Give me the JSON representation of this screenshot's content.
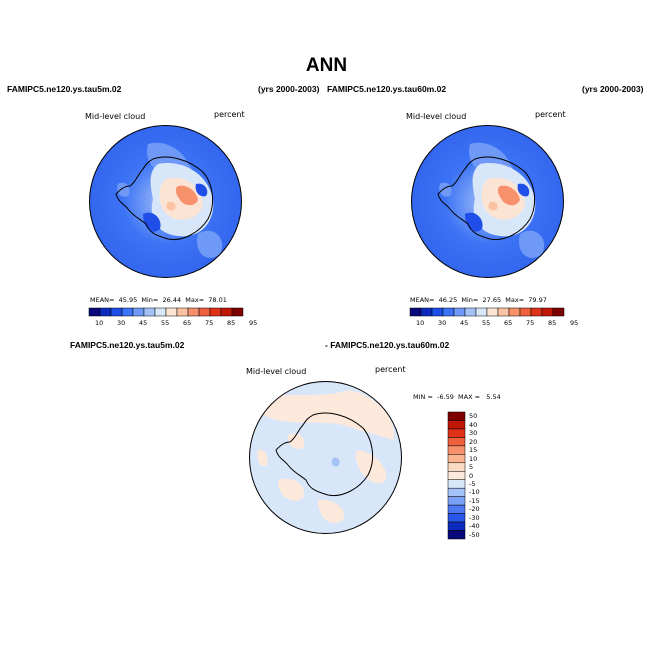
{
  "title": "ANN",
  "top_left_panel": {
    "case": "FAMIPC5.ne120.ys.tau5m.02",
    "years": "(yrs 2000-2003)",
    "variable": "Mid-level cloud",
    "units": "percent",
    "stats": {
      "mean_label": "MEAN=",
      "mean": "45.95",
      "min_label": "Min=",
      "min": "26.44",
      "max_label": "Max=",
      "max": "78.01"
    }
  },
  "top_right_panel": {
    "case": "FAMIPC5.ne120.ys.tau60m.02",
    "years": "(yrs 2000-2003)",
    "variable": "Mid-level cloud",
    "units": "percent",
    "stats": {
      "mean_label": "MEAN=",
      "mean": "46.25",
      "min_label": "Min=",
      "min": "27.65",
      "max_label": "Max=",
      "max": "79.97"
    }
  },
  "diff_panel": {
    "case_a": "FAMIPC5.ne120.ys.tau5m.02",
    "case_b": "- FAMIPC5.ne120.ys.tau60m.02",
    "variable": "Mid-level cloud",
    "units": "percent",
    "minmax": {
      "min_label": "MIN =",
      "min": "-6.59",
      "max_label": "MAX =",
      "max": "5.54"
    }
  },
  "colorbar_abs": {
    "labels": [
      "10",
      "30",
      "45",
      "55",
      "65",
      "75",
      "85",
      "95"
    ],
    "colors": [
      "#08087a",
      "#0c2bbd",
      "#1f4fe8",
      "#3d73f5",
      "#6f99f7",
      "#a5c2f8",
      "#d8e6f9",
      "#fbe4d4",
      "#fbc2a4",
      "#f6916c",
      "#ee5f3c",
      "#de3118",
      "#c01606",
      "#7d0000"
    ]
  },
  "colorbar_diff": {
    "labels": [
      "50",
      "40",
      "30",
      "20",
      "15",
      "10",
      "5",
      "0",
      "-5",
      "-10",
      "-15",
      "-20",
      "-30",
      "-40",
      "-50"
    ],
    "colors": [
      "#7d0000",
      "#c01606",
      "#de3118",
      "#ee5f3c",
      "#f6916c",
      "#fbb48f",
      "#fbdac4",
      "#fde9dc",
      "#d8e6f9",
      "#a5c2f8",
      "#7ba1f6",
      "#4c79f2",
      "#2756e8",
      "#0c2bbd",
      "#08087a"
    ]
  }
}
